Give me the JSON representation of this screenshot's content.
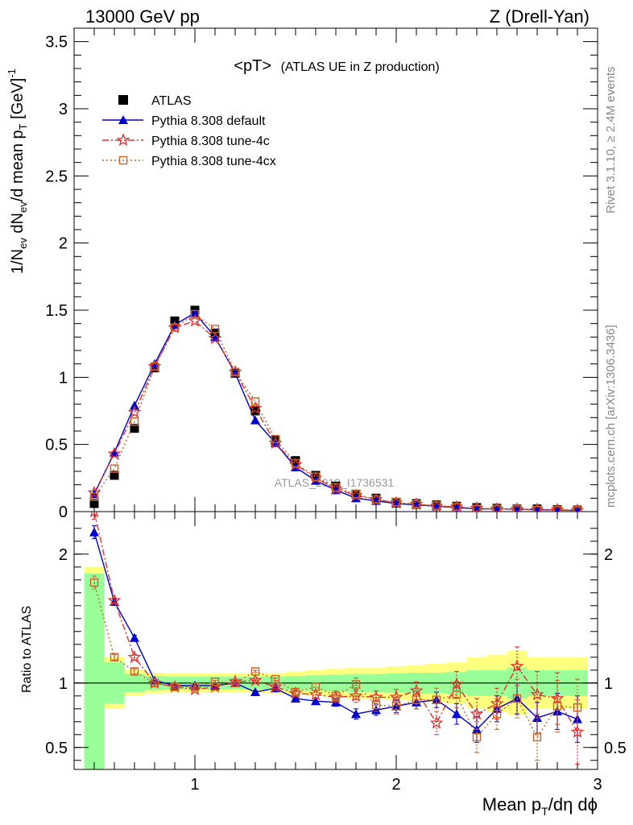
{
  "chart_data": [
    {
      "type": "scatter",
      "panel": "main",
      "header_left": "13000 GeV pp",
      "header_right": "Z (Drell-Yan)",
      "title_main": "<pT>",
      "title_sub": "(ATLAS UE in Z production)",
      "ylabel": "1/N_ev dN_ev/d mean p_T [GeV]^-1",
      "xlim": [
        0.4,
        3.0
      ],
      "ylim": [
        0,
        3.6
      ],
      "yticks": [
        "0",
        "0.5",
        "1",
        "1.5",
        "2",
        "2.5",
        "3",
        "3.5"
      ],
      "watermark": "ATLAS_2019_I1736531",
      "side_text_top": "Rivet 3.1.10, ≥ 2.4M events",
      "side_text_bottom": "mcplots.cern.ch [arXiv:1306.3436]",
      "x": [
        0.5,
        0.6,
        0.7,
        0.8,
        0.9,
        1.0,
        1.1,
        1.2,
        1.3,
        1.4,
        1.5,
        1.6,
        1.7,
        1.8,
        1.9,
        2.0,
        2.1,
        2.2,
        2.3,
        2.4,
        2.5,
        2.6,
        2.7,
        2.8,
        2.9
      ],
      "series": [
        {
          "name": "ATLAS",
          "color": "#000000",
          "marker": "square-filled",
          "values": [
            0.06,
            0.27,
            0.62,
            1.07,
            1.42,
            1.5,
            1.33,
            1.03,
            0.75,
            0.53,
            0.38,
            0.27,
            0.19,
            0.13,
            0.1,
            0.07,
            0.06,
            0.05,
            0.04,
            0.03,
            0.025,
            0.02,
            0.02,
            0.015,
            0.012
          ]
        },
        {
          "name": "Pythia 8.308 default",
          "color": "#0000cc",
          "marker": "triangle-filled",
          "values": [
            0.13,
            0.44,
            0.79,
            1.1,
            1.39,
            1.48,
            1.3,
            1.03,
            0.68,
            0.51,
            0.33,
            0.23,
            0.16,
            0.1,
            0.08,
            0.06,
            0.05,
            0.04,
            0.03,
            0.02,
            0.02,
            0.018,
            0.015,
            0.012,
            0.009
          ]
        },
        {
          "name": "Pythia 8.308 tune-4c",
          "color": "#dd3333",
          "marker": "star",
          "values": [
            0.14,
            0.43,
            0.74,
            1.08,
            1.37,
            1.42,
            1.29,
            1.04,
            0.77,
            0.51,
            0.35,
            0.25,
            0.17,
            0.12,
            0.09,
            0.065,
            0.055,
            0.04,
            0.035,
            0.025,
            0.02,
            0.018,
            0.016,
            0.013,
            0.01
          ]
        },
        {
          "name": "Pythia 8.308 tune-4cx",
          "color": "#c86428",
          "marker": "square-open",
          "values": [
            0.11,
            0.32,
            0.67,
            1.08,
            1.37,
            1.47,
            1.36,
            1.04,
            0.82,
            0.54,
            0.36,
            0.26,
            0.18,
            0.13,
            0.09,
            0.07,
            0.055,
            0.045,
            0.035,
            0.02,
            0.02,
            0.018,
            0.012,
            0.012,
            0.01
          ]
        }
      ]
    },
    {
      "type": "scatter",
      "panel": "ratio",
      "ylabel": "Ratio to ATLAS",
      "xlabel": "Mean p_T/dη dϕ",
      "xlim": [
        0.4,
        3.0
      ],
      "ylim": [
        0.33,
        2.33
      ],
      "yticks": [
        "0.5",
        "1",
        "2"
      ],
      "xticks": [
        "1",
        "2",
        "3"
      ],
      "x": [
        0.5,
        0.6,
        0.7,
        0.8,
        0.9,
        1.0,
        1.1,
        1.2,
        1.3,
        1.4,
        1.5,
        1.6,
        1.7,
        1.8,
        1.9,
        2.0,
        2.1,
        2.2,
        2.3,
        2.4,
        2.5,
        2.6,
        2.7,
        2.8,
        2.9
      ],
      "band_green": [
        0.85,
        0.16,
        0.07,
        0.055,
        0.05,
        0.05,
        0.05,
        0.05,
        0.05,
        0.05,
        0.055,
        0.06,
        0.065,
        0.07,
        0.07,
        0.075,
        0.08,
        0.08,
        0.085,
        0.1,
        0.1,
        0.12,
        0.1,
        0.1,
        0.1
      ],
      "band_yellow": [
        0.9,
        0.2,
        0.1,
        0.08,
        0.075,
        0.075,
        0.075,
        0.075,
        0.075,
        0.08,
        0.09,
        0.1,
        0.11,
        0.12,
        0.12,
        0.13,
        0.14,
        0.15,
        0.16,
        0.2,
        0.22,
        0.25,
        0.2,
        0.2,
        0.2
      ],
      "series": [
        {
          "name": "Pythia 8.308 default",
          "color": "#0000cc",
          "marker": "triangle-filled",
          "values": [
            2.17,
            1.63,
            1.35,
            1.02,
            0.98,
            0.98,
            0.98,
            1.0,
            0.93,
            0.96,
            0.88,
            0.86,
            0.85,
            0.76,
            0.79,
            0.82,
            0.85,
            0.87,
            0.76,
            0.64,
            0.8,
            0.88,
            0.73,
            0.78,
            0.72
          ],
          "errors": [
            0.05,
            0.02,
            0.02,
            0.01,
            0.01,
            0.01,
            0.01,
            0.01,
            0.01,
            0.01,
            0.02,
            0.02,
            0.03,
            0.04,
            0.04,
            0.05,
            0.05,
            0.06,
            0.08,
            0.1,
            0.1,
            0.12,
            0.12,
            0.14,
            0.18
          ]
        },
        {
          "name": "Pythia 8.308 tune-4c",
          "color": "#dd3333",
          "marker": "star",
          "values": [
            2.33,
            1.64,
            1.2,
            1.0,
            0.97,
            0.95,
            0.97,
            1.01,
            1.02,
            0.97,
            0.92,
            0.91,
            0.89,
            0.9,
            0.89,
            0.89,
            0.94,
            0.69,
            0.99,
            0.76,
            0.84,
            1.13,
            0.91,
            0.88,
            0.62
          ],
          "errors": [
            0.06,
            0.02,
            0.02,
            0.01,
            0.01,
            0.01,
            0.01,
            0.01,
            0.01,
            0.01,
            0.02,
            0.03,
            0.04,
            0.05,
            0.05,
            0.06,
            0.07,
            0.09,
            0.1,
            0.12,
            0.12,
            0.15,
            0.18,
            0.2,
            0.25
          ]
        },
        {
          "name": "Pythia 8.308 tune-4cx",
          "color": "#c86428",
          "marker": "square-open",
          "values": [
            1.78,
            1.2,
            1.09,
            1.0,
            0.97,
            0.97,
            1.01,
            1.0,
            1.09,
            1.03,
            0.93,
            0.97,
            0.9,
            0.99,
            0.83,
            0.82,
            0.87,
            0.87,
            0.91,
            0.58,
            0.76,
            0.88,
            0.58,
            0.82,
            0.81
          ],
          "errors": [
            0.05,
            0.02,
            0.02,
            0.01,
            0.01,
            0.01,
            0.01,
            0.01,
            0.01,
            0.01,
            0.02,
            0.03,
            0.04,
            0.05,
            0.05,
            0.06,
            0.07,
            0.09,
            0.1,
            0.12,
            0.12,
            0.15,
            0.18,
            0.2,
            0.22
          ]
        }
      ]
    }
  ]
}
